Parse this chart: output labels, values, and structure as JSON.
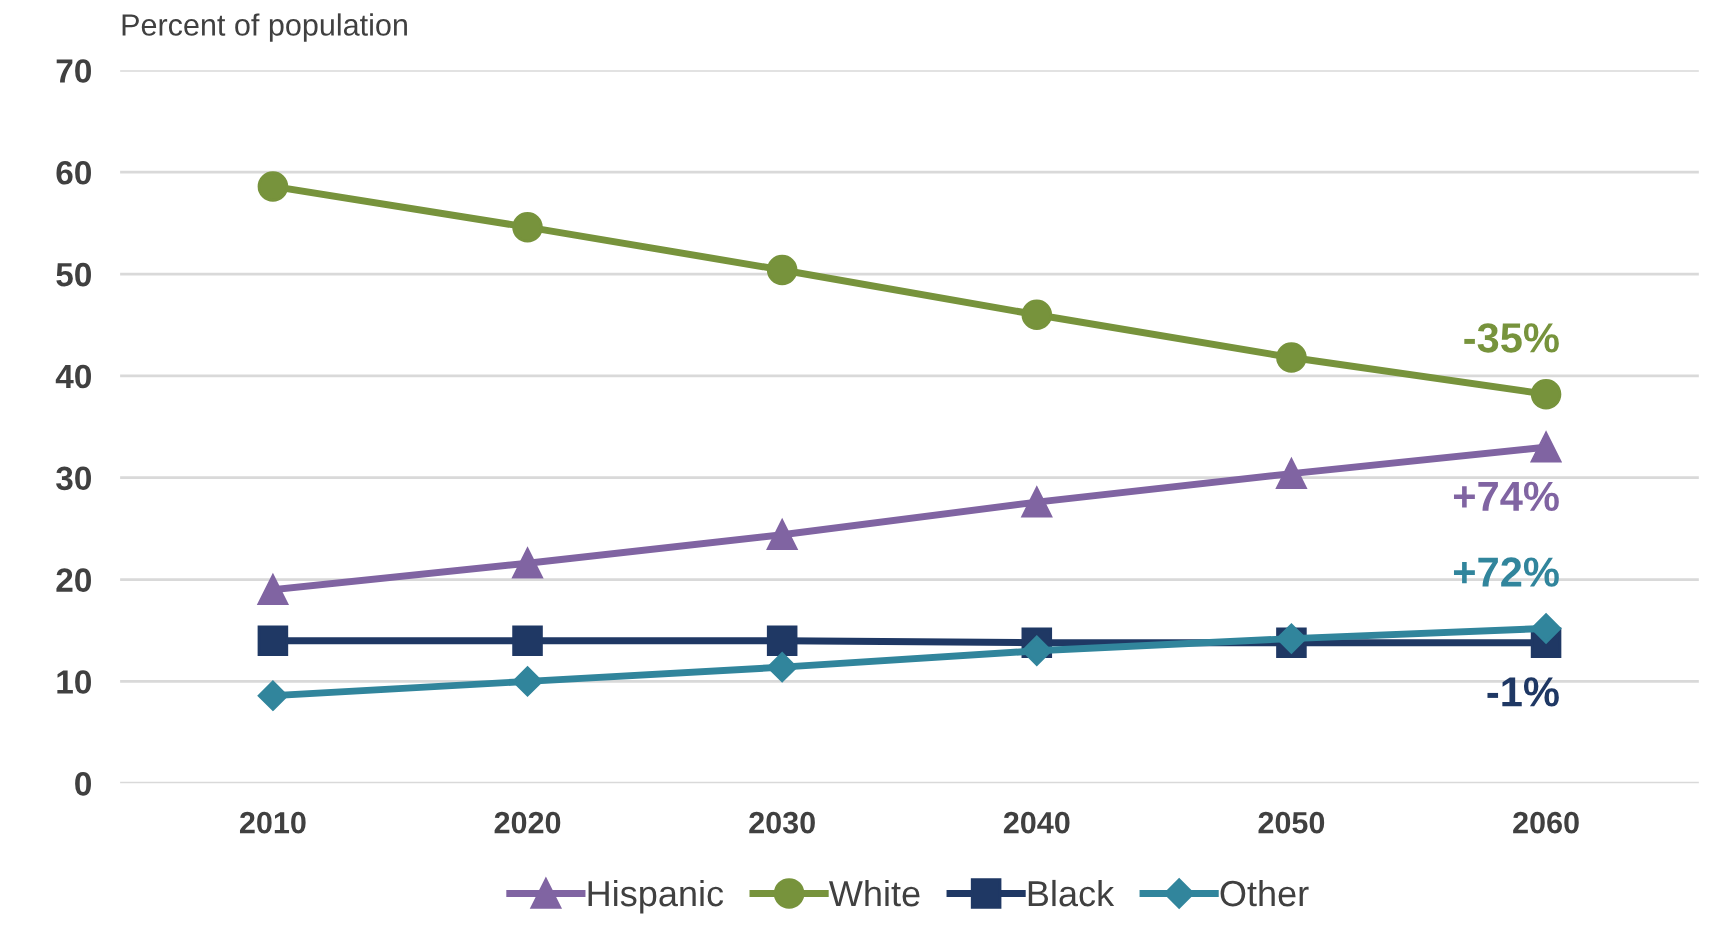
{
  "chart_data": {
    "type": "line",
    "ylabel": "Percent of population",
    "categories": [
      "2010",
      "2020",
      "2030",
      "2040",
      "2050",
      "2060"
    ],
    "series": [
      {
        "name": "Hispanic",
        "color": "#8064a2",
        "marker": "triangle",
        "values": [
          19,
          21.6,
          24.4,
          27.6,
          30.4,
          33
        ]
      },
      {
        "name": "White",
        "color": "#77933c",
        "marker": "circle",
        "values": [
          58.6,
          54.6,
          50.4,
          46,
          41.8,
          38.2
        ]
      },
      {
        "name": "Black",
        "color": "#1f3864",
        "marker": "square",
        "values": [
          14,
          14,
          14,
          13.8,
          13.8,
          13.8
        ]
      },
      {
        "name": "Other",
        "color": "#31859c",
        "marker": "diamond",
        "values": [
          8.6,
          10,
          11.4,
          13,
          14.2,
          15.2
        ]
      }
    ],
    "annotations": [
      {
        "text": "-35%",
        "x": "2060",
        "y": 38.2
      },
      {
        "text": "+74%",
        "x": "2060",
        "y": 33
      },
      {
        "text": "+72%",
        "x": "2060",
        "y": 15.2
      },
      {
        "text": "-1%",
        "x": "2060",
        "y": 13.8
      }
    ],
    "ylim": [
      0,
      70
    ],
    "yticks": [
      0,
      10,
      20,
      30,
      40,
      50,
      60,
      70
    ],
    "grid": "y",
    "legend": "bottom",
    "line_style": "solid"
  }
}
